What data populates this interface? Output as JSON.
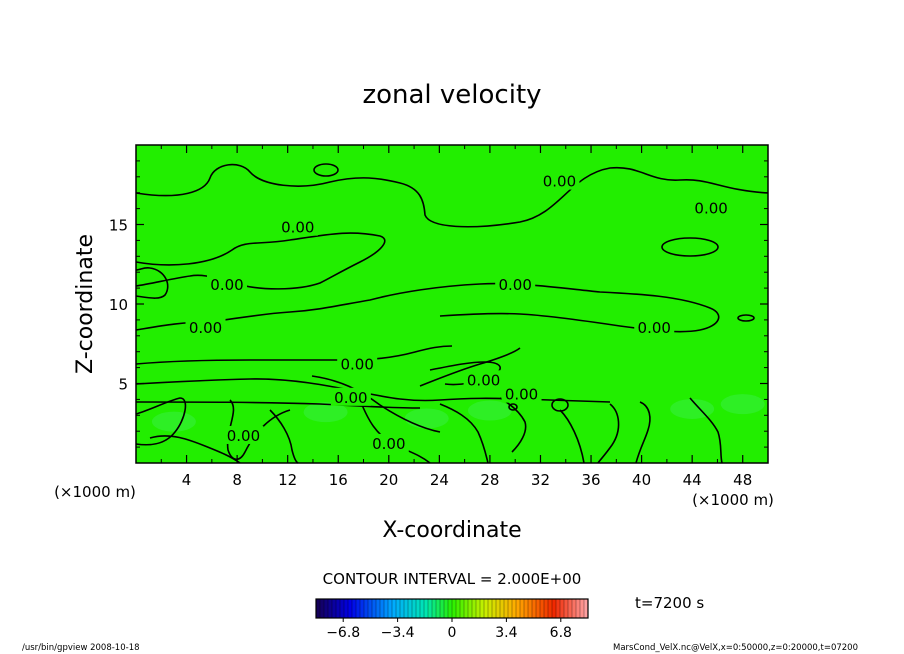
{
  "chart_data": {
    "type": "heatmap",
    "title": "zonal velocity",
    "xlabel": "X-coordinate",
    "ylabel": "Z-coordinate",
    "x_unit": "(×1000 m)",
    "y_unit": "(×1000 m)",
    "xlim": [
      0,
      50
    ],
    "ylim": [
      0,
      20
    ],
    "x_ticks": [
      4,
      8,
      12,
      16,
      20,
      24,
      28,
      32,
      36,
      40,
      44,
      48
    ],
    "y_ticks": [
      5,
      10,
      15
    ],
    "field_color": "#22ee00",
    "contour_labels": [
      {
        "text": "0.00",
        "x": 33.5,
        "z": 17.7
      },
      {
        "text": "0.00",
        "x": 45.5,
        "z": 16.0
      },
      {
        "text": "0.00",
        "x": 12.8,
        "z": 14.8
      },
      {
        "text": "0.00",
        "x": 7.2,
        "z": 11.2
      },
      {
        "text": "0.00",
        "x": 30.0,
        "z": 11.2
      },
      {
        "text": "0.00",
        "x": 41.0,
        "z": 8.5
      },
      {
        "text": "0.00",
        "x": 5.5,
        "z": 8.5
      },
      {
        "text": "0.00",
        "x": 17.5,
        "z": 6.2
      },
      {
        "text": "0.00",
        "x": 27.5,
        "z": 5.2
      },
      {
        "text": "0.00",
        "x": 30.5,
        "z": 4.3
      },
      {
        "text": "0.00",
        "x": 17.0,
        "z": 4.1
      },
      {
        "text": "0.00",
        "x": 8.5,
        "z": 1.7
      },
      {
        "text": "0.00",
        "x": 20.0,
        "z": 1.2
      }
    ],
    "contour_interval_label": "CONTOUR INTERVAL = 2.000E+00",
    "colorbar": {
      "min": -8.5,
      "max": 8.5,
      "ticks": [
        "−6.8",
        "−3.4",
        "0",
        "3.4",
        "6.8"
      ],
      "tick_values": [
        -6.8,
        -3.4,
        0,
        3.4,
        6.8
      ]
    },
    "time_label": "t=7200 s"
  },
  "footer": {
    "left": "/usr/bin/gpview   2008-10-18",
    "right": "MarsCond_VelX.nc@VelX,x=0:50000,z=0:20000,t=07200"
  }
}
